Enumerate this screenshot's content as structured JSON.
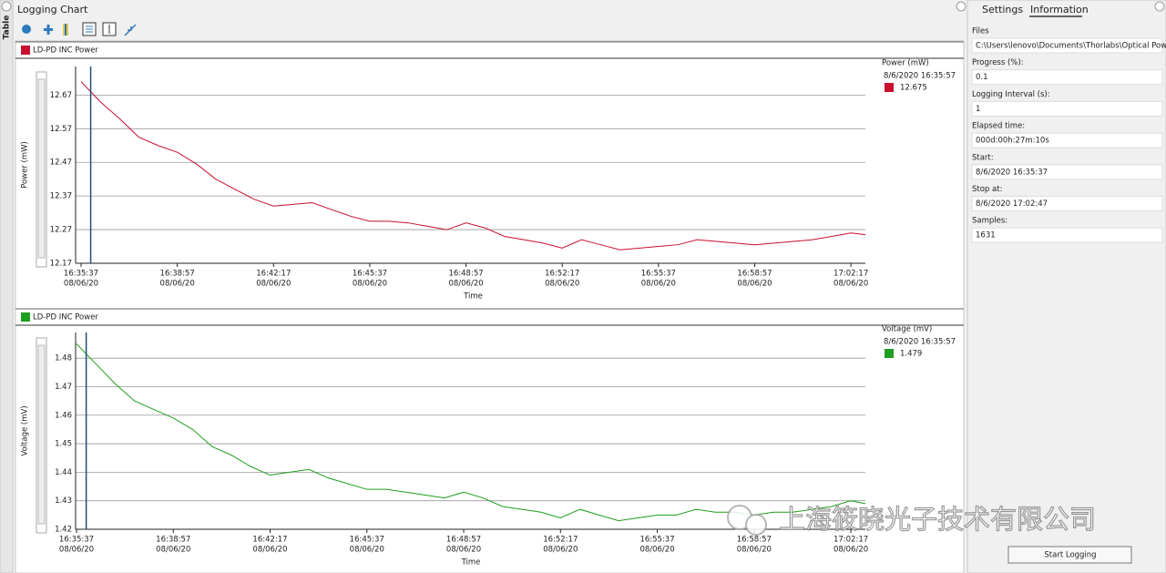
{
  "app": {
    "title": "Logging Chart",
    "side_tab": "Table",
    "watermark": "上海筱晓光子技术有限公司"
  },
  "panel": {
    "tabs": [
      "Settings",
      "Information"
    ],
    "fields": [
      {
        "label": "Files",
        "value": "C:\\Users\\lenovo\\Documents\\Thorlabs\\Optical Power Mor"
      },
      {
        "label": "Progress (%):",
        "value": "0.1"
      },
      {
        "label": "Logging Interval (s):",
        "value": "1"
      },
      {
        "label": "Elapsed time:",
        "value": "000d:00h:27m:10s"
      },
      {
        "label": "Start:",
        "value": "8/6/2020 16:35:37"
      },
      {
        "label": "Stop at:",
        "value": "8/6/2020 17:02:47"
      },
      {
        "label": "Samples:",
        "value": "1631"
      }
    ],
    "button": "Start Logging"
  },
  "chart_data": [
    {
      "type": "line",
      "title": "LD-PD INC Power",
      "x_label": "Time",
      "y_label": "Power (mW)",
      "x": [
        "16:35:37",
        "16:36:17",
        "16:36:57",
        "16:37:37",
        "16:38:17",
        "16:38:57",
        "16:39:37",
        "16:40:17",
        "16:40:57",
        "16:41:37",
        "16:42:17",
        "16:42:57",
        "16:43:37",
        "16:44:17",
        "16:44:57",
        "16:45:37",
        "16:46:17",
        "16:46:57",
        "16:47:37",
        "16:48:17",
        "16:48:57",
        "16:49:37",
        "16:50:17",
        "16:50:57",
        "16:51:37",
        "16:52:17",
        "16:52:57",
        "16:53:37",
        "16:54:17",
        "16:54:57",
        "16:55:37",
        "16:56:17",
        "16:56:57",
        "16:57:37",
        "16:58:17",
        "16:58:57",
        "16:59:37",
        "17:00:17",
        "17:00:57",
        "17:01:37",
        "17:02:17",
        "17:02:47"
      ],
      "series": [
        {
          "name": "Power (mW)",
          "color": "#c8102e",
          "values": [
            12.71,
            12.65,
            12.6,
            12.545,
            12.52,
            12.5,
            12.465,
            12.42,
            12.39,
            12.36,
            12.34,
            12.345,
            12.35,
            12.33,
            12.31,
            12.295,
            12.295,
            12.29,
            12.28,
            12.27,
            12.29,
            12.275,
            12.25,
            12.24,
            12.23,
            12.215,
            12.24,
            12.225,
            12.21,
            12.215,
            12.22,
            12.225,
            12.24,
            12.235,
            12.23,
            12.225,
            12.23,
            12.235,
            12.24,
            12.25,
            12.26,
            12.255
          ]
        }
      ],
      "xlim": [
        "16:35:37",
        "17:02:47"
      ],
      "xticks": [
        {
          "value": "16:35:37",
          "label": [
            "16:35:37",
            "08/06/20"
          ]
        },
        {
          "value": "16:38:57",
          "label": [
            "16:38:57",
            "08/06/20"
          ]
        },
        {
          "value": "16:42:17",
          "label": [
            "16:42:17",
            "08/06/20"
          ]
        },
        {
          "value": "16:45:37",
          "label": [
            "16:45:37",
            "08/06/20"
          ]
        },
        {
          "value": "16:48:57",
          "label": [
            "16:48:57",
            "08/06/20"
          ]
        },
        {
          "value": "16:52:17",
          "label": [
            "16:52:17",
            "08/06/20"
          ]
        },
        {
          "value": "16:55:37",
          "label": [
            "16:55:37",
            "08/06/20"
          ]
        },
        {
          "value": "16:58:57",
          "label": [
            "16:58:57",
            "08/06/20"
          ]
        },
        {
          "value": "17:02:17",
          "label": [
            "17:02:17",
            "08/06/20"
          ]
        }
      ],
      "ylim": [
        12.17,
        12.755
      ],
      "yticks": [
        12.17,
        12.27,
        12.37,
        12.47,
        12.57,
        12.67
      ],
      "grid": true,
      "cursor": {
        "x": "16:35:57",
        "label": "8/6/2020 16:35:57",
        "value": 12.675
      }
    },
    {
      "type": "line",
      "title": "LD-PD INC Power",
      "x_label": "Time",
      "y_label": "Voltage (mV)",
      "x": [
        "16:35:37",
        "16:36:17",
        "16:36:57",
        "16:37:37",
        "16:38:17",
        "16:38:57",
        "16:39:37",
        "16:40:17",
        "16:40:57",
        "16:41:37",
        "16:42:17",
        "16:42:57",
        "16:43:37",
        "16:44:17",
        "16:44:57",
        "16:45:37",
        "16:46:17",
        "16:46:57",
        "16:47:37",
        "16:48:17",
        "16:48:57",
        "16:49:37",
        "16:50:17",
        "16:50:57",
        "16:51:37",
        "16:52:17",
        "16:52:57",
        "16:53:37",
        "16:54:17",
        "16:54:57",
        "16:55:37",
        "16:56:17",
        "16:56:57",
        "16:57:37",
        "16:58:17",
        "16:58:57",
        "16:59:37",
        "17:00:17",
        "17:00:57",
        "17:01:37",
        "17:02:17",
        "17:02:47"
      ],
      "series": [
        {
          "name": "Voltage (mV)",
          "color": "#1e9e1e",
          "values": [
            1.485,
            1.478,
            1.471,
            1.465,
            1.462,
            1.459,
            1.455,
            1.449,
            1.446,
            1.442,
            1.439,
            1.44,
            1.441,
            1.438,
            1.436,
            1.434,
            1.434,
            1.433,
            1.432,
            1.431,
            1.433,
            1.431,
            1.428,
            1.427,
            1.426,
            1.424,
            1.427,
            1.425,
            1.423,
            1.424,
            1.425,
            1.425,
            1.427,
            1.426,
            1.426,
            1.425,
            1.426,
            1.426,
            1.427,
            1.428,
            1.43,
            1.429
          ]
        }
      ],
      "xlim": [
        "16:35:37",
        "17:02:47"
      ],
      "xticks": [
        {
          "value": "16:35:37",
          "label": [
            "16:35:37",
            "08/06/20"
          ]
        },
        {
          "value": "16:38:57",
          "label": [
            "16:38:57",
            "08/06/20"
          ]
        },
        {
          "value": "16:42:17",
          "label": [
            "16:42:17",
            "08/06/20"
          ]
        },
        {
          "value": "16:45:37",
          "label": [
            "16:45:37",
            "08/06/20"
          ]
        },
        {
          "value": "16:48:57",
          "label": [
            "16:48:57",
            "08/06/20"
          ]
        },
        {
          "value": "16:52:17",
          "label": [
            "16:52:17",
            "08/06/20"
          ]
        },
        {
          "value": "16:55:37",
          "label": [
            "16:55:37",
            "08/06/20"
          ]
        },
        {
          "value": "16:58:57",
          "label": [
            "16:58:57",
            "08/06/20"
          ]
        },
        {
          "value": "17:02:17",
          "label": [
            "17:02:17",
            "08/06/20"
          ]
        }
      ],
      "ylim": [
        1.42,
        1.489
      ],
      "yticks": [
        1.42,
        1.43,
        1.44,
        1.45,
        1.46,
        1.47,
        1.48
      ],
      "grid": true,
      "cursor": {
        "x": "16:35:57",
        "label": "8/6/2020 16:35:57",
        "value": 1.479
      }
    }
  ]
}
